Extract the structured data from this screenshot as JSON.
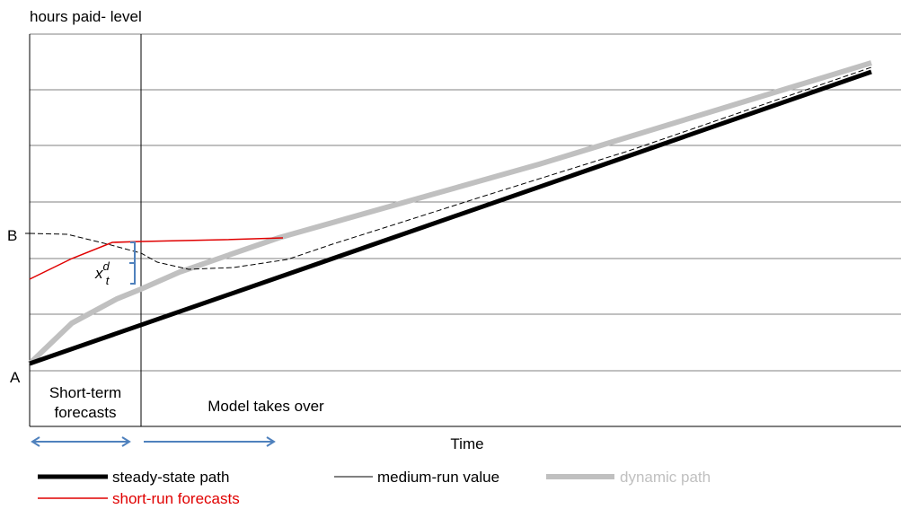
{
  "header": {
    "title": "hours paid- level"
  },
  "axis": {
    "point_b": "B",
    "point_a": "A",
    "x_label": "Time"
  },
  "annotation": {
    "base": "x",
    "sup": "d",
    "sub": "t"
  },
  "regions": {
    "short_term": [
      "Short-term",
      "forecasts"
    ],
    "model": "Model takes over"
  },
  "legend": {
    "steady_state": "steady-state path",
    "medium_run": "medium-run value",
    "dynamic": "dynamic path",
    "short_run": "short-run forecasts"
  }
}
